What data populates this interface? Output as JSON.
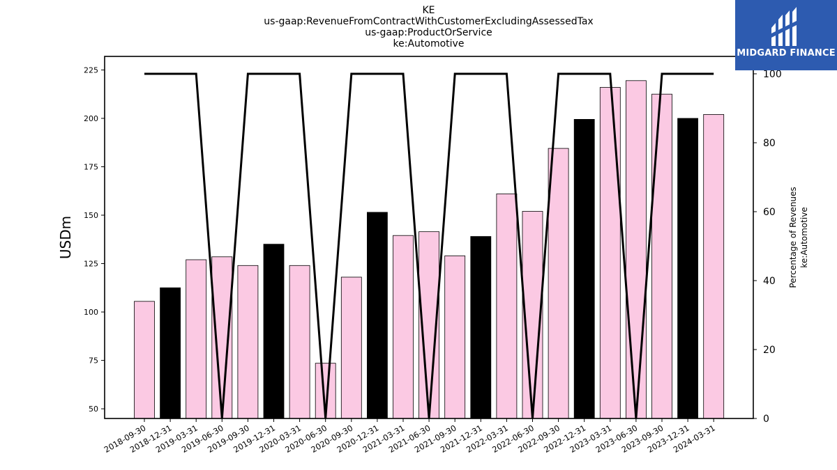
{
  "title_lines": [
    "KE",
    "us-gaap:RevenueFromContractWithCustomerExcludingAssessedTax",
    "us-gaap:ProductOrService",
    "ke:Automotive"
  ],
  "logo": {
    "text": "MIDGARD FINANCE",
    "background": "#2d5bb0"
  },
  "chart_data": {
    "type": "bar",
    "ylabel": "USDm",
    "y2label_lines": [
      "Percentage of Revenues",
      "ke:Automotive"
    ],
    "ylim": [
      45,
      232
    ],
    "y2lim": [
      0,
      100
    ],
    "yticks": [
      50,
      75,
      100,
      125,
      150,
      175,
      200,
      225
    ],
    "y2ticks": [
      0,
      20,
      40,
      60,
      80,
      100
    ],
    "categories": [
      "2018-09-30",
      "2018-12-31",
      "2019-03-31",
      "2019-06-30",
      "2019-09-30",
      "2019-12-31",
      "2020-03-31",
      "2020-06-30",
      "2020-09-30",
      "2020-12-31",
      "2021-03-31",
      "2021-06-30",
      "2021-09-30",
      "2021-12-31",
      "2022-03-31",
      "2022-06-30",
      "2022-09-30",
      "2022-12-31",
      "2023-03-31",
      "2023-06-30",
      "2023-09-30",
      "2023-12-31",
      "2024-03-31"
    ],
    "series": [
      {
        "values": [
          105.5,
          112.5,
          127,
          128.5,
          124,
          135,
          124,
          73.5,
          118,
          151.5,
          139.5,
          141.5,
          129,
          139,
          161,
          152,
          184.5,
          199.5,
          216,
          219.5,
          212.5,
          200,
          202
        ],
        "bar_colors": [
          "#fbc9e3",
          "#000000",
          "#fbc9e3",
          "#fbc9e3",
          "#fbc9e3",
          "#000000",
          "#fbc9e3",
          "#fbc9e3",
          "#fbc9e3",
          "#000000",
          "#fbc9e3",
          "#fbc9e3",
          "#fbc9e3",
          "#000000",
          "#fbc9e3",
          "#fbc9e3",
          "#fbc9e3",
          "#000000",
          "#fbc9e3",
          "#fbc9e3",
          "#fbc9e3",
          "#000000",
          "#fbc9e3"
        ]
      },
      {
        "axis": "right",
        "color": "#000000",
        "values": [
          100,
          100,
          100,
          0,
          100,
          100,
          100,
          0,
          100,
          100,
          100,
          0,
          100,
          100,
          100,
          0,
          100,
          100,
          100,
          0,
          100,
          100,
          100
        ]
      }
    ]
  }
}
